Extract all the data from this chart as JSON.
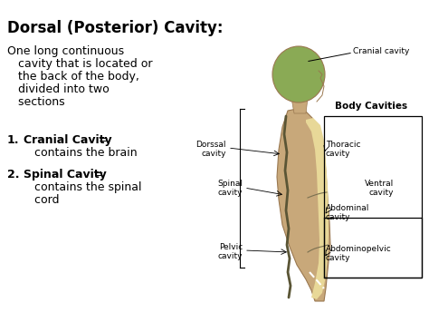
{
  "title": "Dorsal (Posterior) Cavity:",
  "body_text_line1": "One long continuous",
  "body_text_line2": "   cavity that is located or",
  "body_text_line3": "   the back of the body,",
  "body_text_line4": "   divided into two",
  "body_text_line5": "   sections",
  "item1_bold": "Cranial Cavity",
  "item1_eq": " =",
  "item1_rest": "   contains the brain",
  "item2_bold": "Spinal Cavity",
  "item2_eq": " =",
  "item2_rest1": "   contains the spinal",
  "item2_rest2": "   cord",
  "bg_color": "#ffffff",
  "text_color": "#000000",
  "diagram_label": "Body Cavities",
  "label_cranial": "Cranial cavity",
  "label_dorssal": "Dorssal\ncavity",
  "label_spinal": "Spinal\ncavity",
  "label_pelvic": "Pelvic\ncavity",
  "label_thoracic": "Thoracic\ncavity",
  "label_ventral": "Ventral\ncavity",
  "label_abdominal": "Abdominal\ncavity",
  "label_abdominopelvic": "Abdominopelvic\ncavity",
  "head_color": "#8aaa55",
  "body_color": "#c8a87a",
  "ventral_color": "#e8d898",
  "spine_color": "#5a5535",
  "outline_color": "#9a7850"
}
